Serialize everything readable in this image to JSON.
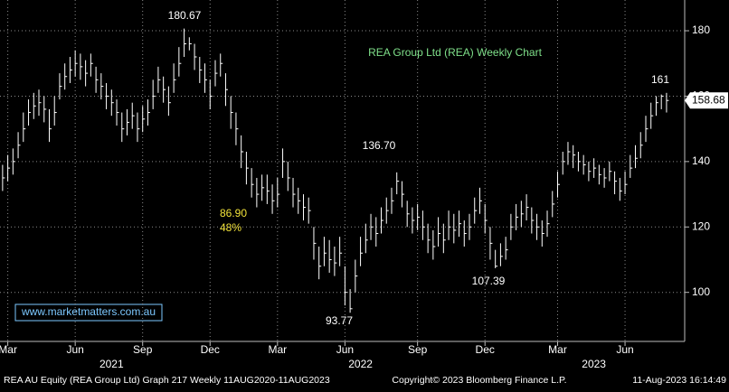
{
  "chart_data": {
    "type": "ohlc",
    "title": "REA Group Ltd (REA) Weekly Chart",
    "source": "www.marketmatters.com.au",
    "footer_left": "REA AU Equity (REA Group Ltd) Graph 217  Weekly 11AUG2020-11AUG2023",
    "footer_center": "Copyright© 2023 Bloomberg Finance L.P.",
    "footer_right": "11-Aug-2023 16:14:49",
    "annotations": [
      "180.67",
      "161",
      "136.70",
      "107.39",
      "93.77",
      "86.90",
      "48%"
    ],
    "last_price": 158.68,
    "color": "#ffffff",
    "grid": true,
    "ylim": [
      85,
      189.4
    ],
    "yticks": [
      100,
      120,
      140,
      160,
      180
    ],
    "xlim": [
      -0.5,
      131.5
    ],
    "xticks": [
      {
        "value": 1,
        "label": "Mar"
      },
      {
        "value": 14,
        "label": "Jun"
      },
      {
        "value": 27,
        "label": "Sep"
      },
      {
        "value": 40,
        "label": "Dec"
      },
      {
        "value": 53,
        "label": "Mar"
      },
      {
        "value": 66,
        "label": "Jun"
      },
      {
        "value": 80,
        "label": "Sep"
      },
      {
        "value": 93,
        "label": "Dec"
      },
      {
        "value": 107,
        "label": "Mar"
      },
      {
        "value": 120,
        "label": "Jun"
      }
    ],
    "years": [
      {
        "value": 21,
        "label": "2021"
      },
      {
        "value": 69,
        "label": "2022"
      },
      {
        "value": 114,
        "label": "2023"
      }
    ],
    "series": [
      {
        "name": "REA",
        "high": [
          139,
          142,
          144,
          149,
          155,
          159,
          161,
          162,
          160,
          156,
          160,
          167,
          170,
          172,
          174,
          173,
          171,
          173,
          169,
          167,
          164,
          162,
          159,
          155,
          156,
          158,
          155,
          157,
          159,
          165,
          169,
          166,
          163,
          170,
          175,
          180.67,
          178,
          176,
          172,
          170,
          165,
          171,
          173,
          167,
          160,
          155,
          148,
          143,
          138,
          135,
          136,
          136,
          133,
          135,
          144,
          140,
          135,
          132,
          130,
          129,
          120,
          114,
          117,
          116,
          114,
          117,
          108,
          101,
          110,
          117,
          121,
          124,
          123,
          126,
          129,
          132,
          136.7,
          134,
          128,
          126,
          127,
          125,
          121,
          119,
          123,
          121,
          125,
          124,
          125,
          122,
          124,
          129,
          132,
          127,
          120,
          113,
          115,
          117,
          124,
          127,
          128,
          130,
          126,
          124,
          122,
          125,
          131,
          137,
          143,
          146,
          145,
          143,
          142,
          140,
          141,
          139,
          138,
          140,
          137,
          135,
          137,
          142,
          145,
          149,
          154,
          158,
          160,
          160.5,
          161
        ],
        "low": [
          131,
          134,
          136,
          141,
          146,
          151,
          153,
          154,
          152,
          146,
          151,
          159,
          162,
          164,
          166,
          165,
          163,
          166,
          161,
          159,
          156,
          154,
          151,
          146,
          148,
          150,
          146,
          149,
          151,
          156,
          161,
          158,
          154,
          161,
          166,
          172,
          174,
          168,
          164,
          161,
          156,
          163,
          166,
          157,
          150,
          145,
          138,
          133,
          129,
          126,
          128,
          127,
          124,
          126,
          135,
          131,
          126,
          124,
          122,
          121,
          110,
          104,
          108,
          106,
          105,
          108,
          96,
          93.77,
          100,
          108,
          112,
          116,
          114,
          118,
          121,
          124,
          130,
          126,
          120,
          118,
          119,
          116,
          112,
          110,
          114,
          112,
          116,
          115,
          117,
          114,
          116,
          121,
          124,
          118,
          110,
          107.39,
          108,
          110,
          116,
          119,
          120,
          122,
          118,
          116,
          114,
          117,
          123,
          129,
          136,
          139,
          138,
          137,
          136,
          134,
          135,
          133,
          132,
          134,
          130,
          128,
          130,
          135,
          138,
          141,
          146,
          150,
          154,
          156,
          155
        ],
        "close": [
          135,
          138,
          140,
          145,
          150,
          155,
          157,
          158,
          156,
          150,
          155,
          163,
          166,
          168,
          170,
          169,
          167,
          170,
          165,
          163,
          160,
          158,
          155,
          150,
          152,
          154,
          150,
          153,
          155,
          160,
          165,
          162,
          158,
          165,
          170,
          176,
          176,
          172,
          168,
          165,
          160,
          167,
          170,
          162,
          155,
          150,
          143,
          138,
          133,
          130,
          132,
          131,
          128,
          130,
          140,
          135,
          130,
          128,
          126,
          125,
          115,
          108,
          112,
          110,
          109,
          112,
          100,
          95,
          105,
          112,
          116,
          120,
          118,
          122,
          125,
          128,
          134,
          130,
          124,
          122,
          123,
          120,
          116,
          114,
          118,
          116,
          120,
          119,
          121,
          118,
          120,
          125,
          128,
          122,
          115,
          108,
          111,
          113,
          120,
          123,
          124,
          126,
          122,
          120,
          118,
          121,
          127,
          133,
          140,
          143,
          142,
          140,
          139,
          137,
          138,
          136,
          135,
          137,
          134,
          131,
          133,
          138,
          141,
          145,
          150,
          154,
          158,
          160,
          158.68
        ]
      }
    ]
  }
}
